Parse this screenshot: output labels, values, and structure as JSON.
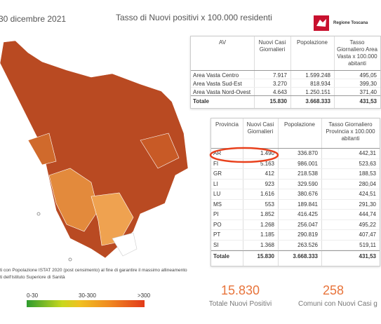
{
  "header": {
    "date": "30 dicembre 2021",
    "title": "Tasso di Nuovi positivi x 100.000 residenti",
    "logo": "Regione Toscana"
  },
  "table_av": {
    "columns": [
      "AV",
      "Nuovi Casi Giornalieri",
      "Popolazione",
      "Tasso Giornaliero Area Vasta x 100.000 abitanti"
    ],
    "rows": [
      [
        "Area Vasta Centro",
        "7.917",
        "1.599.248",
        "495,05"
      ],
      [
        "Area Vasta Sud-Est",
        "3.270",
        "818.934",
        "399,30"
      ],
      [
        "Area Vasta Nord-Ovest",
        "4.643",
        "1.250.151",
        "371,40"
      ]
    ],
    "total": [
      "Totale",
      "15.830",
      "3.668.333",
      "431,53"
    ]
  },
  "table_prov": {
    "columns": [
      "Provincia",
      "Nuovi Casi Giornalieri",
      "Popolazione",
      "Tasso Giornaliero Provincia x 100.000 abitanti"
    ],
    "rows": [
      [
        "AR",
        "1.490",
        "336.870",
        "442,31"
      ],
      [
        "FI",
        "5.163",
        "986.001",
        "523,63"
      ],
      [
        "GR",
        "412",
        "218.538",
        "188,53"
      ],
      [
        "LI",
        "923",
        "329.590",
        "280,04"
      ],
      [
        "LU",
        "1.616",
        "380.676",
        "424,51"
      ],
      [
        "MS",
        "553",
        "189.841",
        "291,30"
      ],
      [
        "PI",
        "1.852",
        "416.425",
        "444,74"
      ],
      [
        "PO",
        "1.268",
        "256.047",
        "495,22"
      ],
      [
        "PT",
        "1.185",
        "290.819",
        "407,47"
      ],
      [
        "SI",
        "1.368",
        "263.526",
        "519,11"
      ]
    ],
    "total": [
      "Totale",
      "15.830",
      "3.668.333",
      "431,53"
    ]
  },
  "footnote": [
    "ti con Popolazione ISTAT 2020 (post censimento) al fine di garantire il massimo allineamento",
    "ti dell'Istituto Superiore di Sanità"
  ],
  "legend": [
    "0-30",
    "30-300",
    ">300"
  ],
  "kpis": [
    {
      "value": "15.830",
      "label": "Totale Nuovi Positivi"
    },
    {
      "value": "258",
      "label": "Comuni con Nuovi Casi g"
    }
  ]
}
